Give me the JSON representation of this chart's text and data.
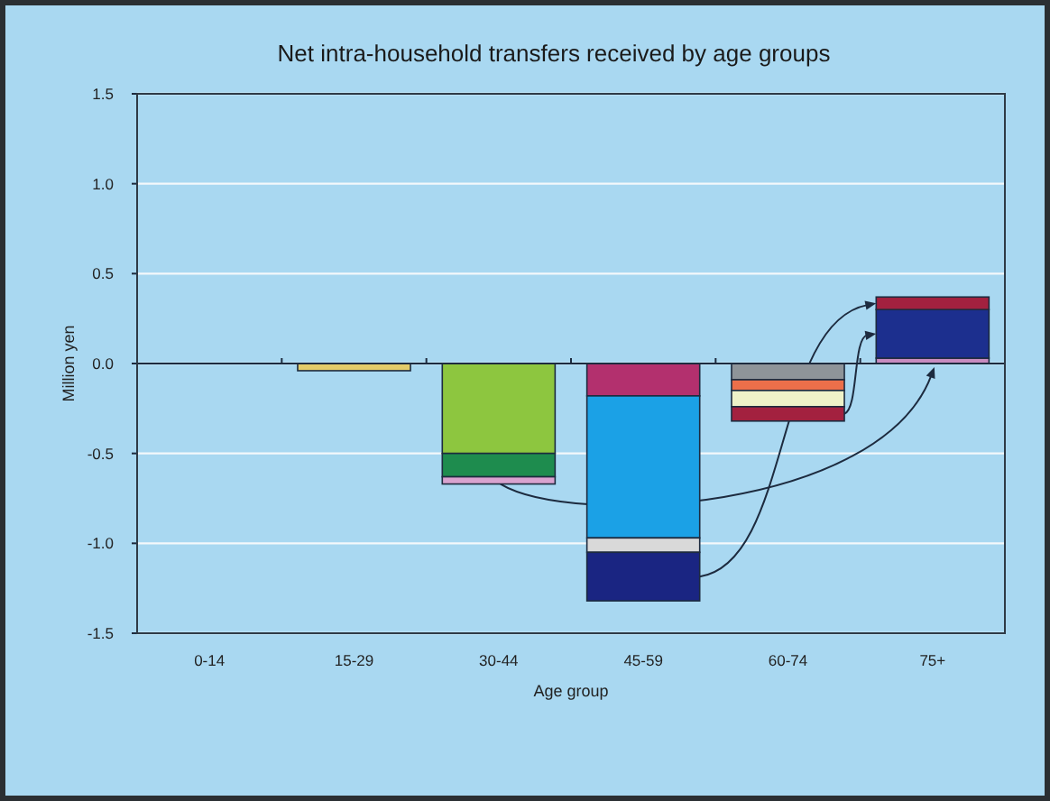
{
  "chart_data": {
    "type": "bar",
    "title": "Net intra-household transfers received by age groups",
    "xlabel": "Age group",
    "ylabel": "Million yen",
    "categories": [
      "0-14",
      "15-29",
      "30-44",
      "45-59",
      "60-74",
      "75+"
    ],
    "stacked": true,
    "series": [
      {
        "colors": [
          null,
          "#e3cc6a",
          "#8dc63f",
          "#b3306e",
          "#8e9499",
          "#c88cc0"
        ],
        "values": [
          null,
          -0.04,
          -0.5,
          -0.18,
          -0.09,
          0.03
        ]
      },
      {
        "colors": [
          null,
          null,
          "#1e8c4e",
          "#1ba1e6",
          "#ec6f4a",
          "#1c2f8e"
        ],
        "values": [
          null,
          null,
          -0.13,
          -0.79,
          -0.06,
          0.27
        ]
      },
      {
        "colors": [
          null,
          null,
          "#d9a3cf",
          "#d9d9d9",
          "#eef2c8",
          "#a3213f"
        ],
        "values": [
          null,
          null,
          -0.04,
          -0.08,
          -0.09,
          0.07
        ]
      },
      {
        "colors": [
          null,
          null,
          null,
          "#1a2582",
          "#a3213f",
          null
        ],
        "values": [
          null,
          null,
          null,
          -0.27,
          -0.08,
          null
        ]
      }
    ],
    "ylim": [
      -1.5,
      1.5
    ],
    "yticks": [
      1.5,
      {
        "value": 1,
        "label": "1.0"
      },
      0.5,
      {
        "value": 0,
        "label": "0.0"
      },
      -0.5,
      {
        "value": -1,
        "label": "-1.0"
      },
      -1.5
    ],
    "grid": "y"
  }
}
